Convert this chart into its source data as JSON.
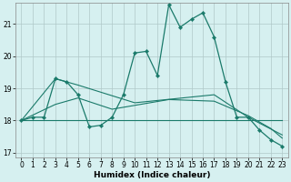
{
  "xlabel": "Humidex (Indice chaleur)",
  "background_color": "#d6f0f0",
  "grid_color": "#b0c8c8",
  "line_color": "#1a7a6a",
  "xlim": [
    -0.5,
    23.5
  ],
  "ylim": [
    16.85,
    21.65
  ],
  "yticks": [
    17,
    18,
    19,
    20,
    21
  ],
  "xticks": [
    0,
    1,
    2,
    3,
    4,
    5,
    6,
    7,
    8,
    9,
    10,
    11,
    12,
    13,
    14,
    15,
    16,
    17,
    18,
    19,
    20,
    21,
    22,
    23
  ],
  "main_series": {
    "x": [
      0,
      1,
      2,
      3,
      4,
      5,
      6,
      7,
      8,
      9,
      10,
      11,
      12,
      13,
      14,
      15,
      16,
      17,
      18,
      19,
      20,
      21,
      22,
      23
    ],
    "y": [
      18.0,
      18.1,
      18.1,
      19.3,
      19.2,
      18.8,
      17.8,
      17.85,
      18.1,
      18.8,
      20.1,
      20.15,
      19.4,
      21.6,
      20.9,
      21.15,
      21.35,
      20.6,
      19.2,
      18.1,
      18.1,
      17.7,
      17.4,
      17.2
    ]
  },
  "line2": {
    "x": [
      0,
      23
    ],
    "y": [
      18.0,
      18.0
    ]
  },
  "line3": {
    "x": [
      0,
      3,
      5,
      10,
      17,
      20,
      23
    ],
    "y": [
      18.0,
      19.3,
      19.1,
      18.55,
      18.8,
      18.1,
      17.55
    ]
  },
  "line4": {
    "x": [
      0,
      3,
      5,
      8,
      13,
      17,
      20,
      22,
      23
    ],
    "y": [
      18.0,
      18.5,
      18.7,
      18.35,
      18.65,
      18.6,
      18.15,
      17.75,
      17.45
    ]
  }
}
